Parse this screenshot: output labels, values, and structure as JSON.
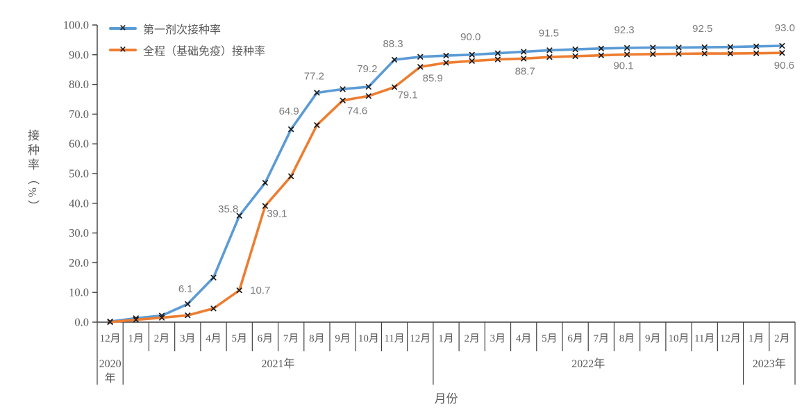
{
  "chart_data": {
    "type": "line",
    "title": "",
    "xlabel": "月份",
    "ylabel": "接种率（%）",
    "ylim": [
      0,
      100
    ],
    "ytick_labels": [
      "0.0",
      "10.0",
      "20.0",
      "30.0",
      "40.0",
      "50.0",
      "60.0",
      "70.0",
      "80.0",
      "90.0",
      "100.0"
    ],
    "grid": false,
    "legend_position": "top-left-inside",
    "x_categories": [
      "12月",
      "1月",
      "2月",
      "3月",
      "4月",
      "5月",
      "6月",
      "7月",
      "8月",
      "9月",
      "10月",
      "11月",
      "12月",
      "1月",
      "2月",
      "3月",
      "4月",
      "5月",
      "6月",
      "7月",
      "8月",
      "9月",
      "10月",
      "11月",
      "12月",
      "1月",
      "2月"
    ],
    "year_groups": [
      {
        "label": "2020年",
        "span": 1,
        "wrap": true
      },
      {
        "label": "2021年",
        "span": 12,
        "wrap": false
      },
      {
        "label": "2022年",
        "span": 12,
        "wrap": false
      },
      {
        "label": "2023年",
        "span": 2,
        "wrap": false
      }
    ],
    "series": [
      {
        "name": "第一剂次接种率",
        "color": "#5B9BD5",
        "marker": "x",
        "values": [
          0.2,
          1.3,
          2.2,
          6.1,
          15.0,
          35.8,
          46.9,
          64.9,
          77.2,
          78.4,
          79.2,
          88.3,
          89.3,
          89.7,
          90.0,
          90.5,
          91.0,
          91.5,
          91.8,
          92.1,
          92.3,
          92.4,
          92.4,
          92.5,
          92.6,
          92.8,
          93.0
        ],
        "data_labels": {
          "3": "6.1",
          "5": "35.8",
          "7": "64.9",
          "8": "77.2",
          "10": "79.2",
          "11": "88.3",
          "14": "90.0",
          "17": "91.5",
          "20": "92.3",
          "23": "92.5",
          "26": "93.0"
        }
      },
      {
        "name": "全程（基础免疫）接种率",
        "color": "#ED7D31",
        "marker": "x",
        "values": [
          0.0,
          0.8,
          1.5,
          2.3,
          4.6,
          10.7,
          39.1,
          49.1,
          66.3,
          74.6,
          76.1,
          79.1,
          85.9,
          87.3,
          87.9,
          88.4,
          88.7,
          89.2,
          89.5,
          89.8,
          90.1,
          90.2,
          90.3,
          90.4,
          90.4,
          90.5,
          90.6
        ],
        "data_labels": {
          "5": "10.7",
          "6": "39.1",
          "9": "74.6",
          "11": "79.1",
          "12": "85.9",
          "16": "88.7",
          "20": "90.1",
          "26": "90.6"
        }
      }
    ],
    "colors": {
      "axis": "#3f3f3f",
      "axis_labels": "#595959",
      "data_labels": "#7a7a7a",
      "marker": "#1a1a1a"
    }
  }
}
